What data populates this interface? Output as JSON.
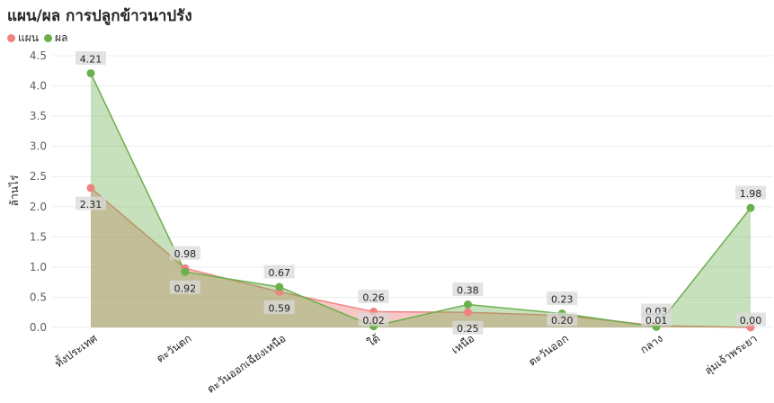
{
  "chart_data": {
    "type": "area",
    "title": "แผน/ผล การปลูกข้าวนาปรัง",
    "ylabel": "ล้านไร่",
    "xlabel": "",
    "ylim": [
      0,
      4.5
    ],
    "yticks": [
      "0.0",
      "0.5",
      "1.0",
      "1.5",
      "2.0",
      "2.5",
      "3.0",
      "3.5",
      "4.0",
      "4.5"
    ],
    "grid": true,
    "legend_position": "top-left",
    "categories": [
      "ทั้งประเทศ",
      "ตะวันตก",
      "ตะวันออกเฉียงเหนือ",
      "ใต้",
      "เหนือ",
      "ตะวันออก",
      "กลาง",
      "ลุ่มเจ้าพระยา"
    ],
    "series": [
      {
        "name": "แผน",
        "color": "#f0837f",
        "values": [
          2.31,
          0.98,
          0.59,
          0.26,
          0.25,
          0.2,
          0.03,
          0.0
        ],
        "labels": [
          "2.31",
          "0.98",
          "0.59",
          "0.26",
          "0.25",
          "0.20",
          "0.03",
          "0.00"
        ]
      },
      {
        "name": "ผล",
        "color": "#6ab04c",
        "values": [
          4.21,
          0.92,
          0.67,
          0.02,
          0.38,
          0.23,
          0.01,
          1.98
        ],
        "labels": [
          "4.21",
          "0.92",
          "0.67",
          "0.02",
          "0.38",
          "0.23",
          "0.01",
          "1.98"
        ]
      }
    ]
  }
}
